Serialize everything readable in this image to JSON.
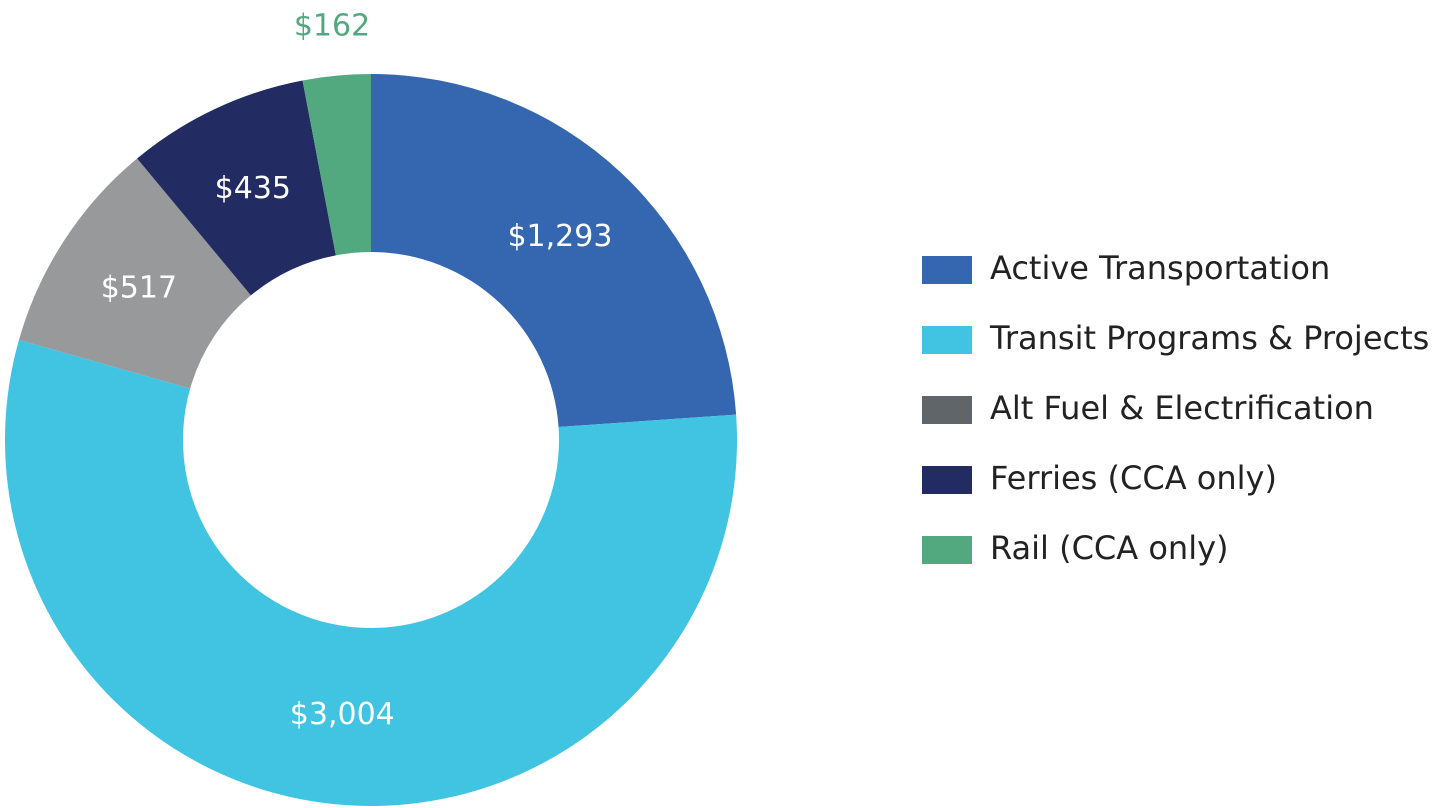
{
  "chart_data": {
    "type": "donut",
    "categories": [
      "Active Transportation",
      "Transit Programs & Projects",
      "Alt Fuel & Electrification",
      "Ferries (CCA only)",
      "Rail (CCA only)"
    ],
    "values": [
      1293,
      3004,
      517,
      435,
      162
    ],
    "value_labels": [
      "$1,293",
      "$3,004",
      "$517",
      "$435",
      "$162"
    ],
    "colors": [
      "#3567b0",
      "#40c4e2",
      "#98999b",
      "#222c62",
      "#52a97f"
    ],
    "legend_colors": [
      "#3567b0",
      "#40c4e2",
      "#5f6569",
      "#222c62",
      "#52a97f"
    ]
  }
}
